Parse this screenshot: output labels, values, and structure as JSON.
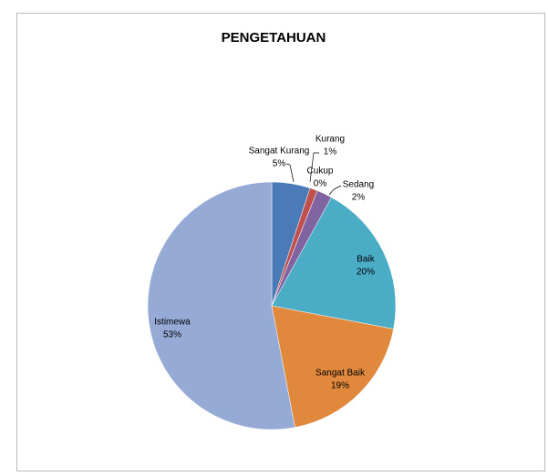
{
  "chart_data": {
    "type": "pie",
    "title": "PENGETAHUAN",
    "categories": [
      "Sangat Kurang",
      "Kurang",
      "Cukup",
      "Sedang",
      "Baik",
      "Sangat Baik",
      "Istimewa"
    ],
    "values": [
      5,
      1,
      0,
      2,
      20,
      19,
      53
    ],
    "value_labels": [
      "5%",
      "1%",
      "0%",
      "2%",
      "20%",
      "19%",
      "53%"
    ],
    "colors": [
      "#4a7ab7",
      "#c0504d",
      "#9bbb59",
      "#8064a2",
      "#4bacc6",
      "#e0883c",
      "#95aad4"
    ]
  }
}
